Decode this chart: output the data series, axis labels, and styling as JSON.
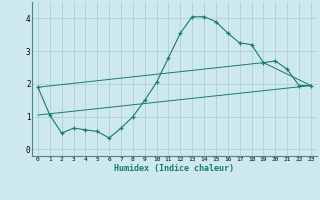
{
  "xlabel": "Humidex (Indice chaleur)",
  "bg_color": "#cde8ee",
  "grid_color": "#b0cfd6",
  "line_color": "#1a7a6e",
  "xlim": [
    -0.5,
    23.5
  ],
  "ylim": [
    -0.2,
    4.5
  ],
  "xticks": [
    0,
    1,
    2,
    3,
    4,
    5,
    6,
    7,
    8,
    9,
    10,
    11,
    12,
    13,
    14,
    15,
    16,
    17,
    18,
    19,
    20,
    21,
    22,
    23
  ],
  "yticks": [
    0,
    1,
    2,
    3,
    4
  ],
  "line1_x": [
    0,
    1,
    2,
    3,
    4,
    5,
    6,
    7,
    8,
    9,
    10,
    11,
    12,
    13,
    14,
    15,
    16,
    17,
    18,
    19,
    20,
    21,
    22,
    23
  ],
  "line1_y": [
    1.9,
    1.05,
    0.5,
    0.65,
    0.6,
    0.55,
    0.35,
    0.65,
    1.0,
    1.5,
    2.05,
    2.8,
    3.55,
    4.05,
    4.05,
    3.9,
    3.55,
    3.25,
    3.2,
    2.65,
    2.7,
    2.45,
    1.95,
    1.95
  ],
  "line2_x": [
    0,
    19,
    23
  ],
  "line2_y": [
    1.9,
    2.65,
    1.95
  ],
  "line3_x": [
    0,
    23
  ],
  "line3_y": [
    1.05,
    1.95
  ]
}
